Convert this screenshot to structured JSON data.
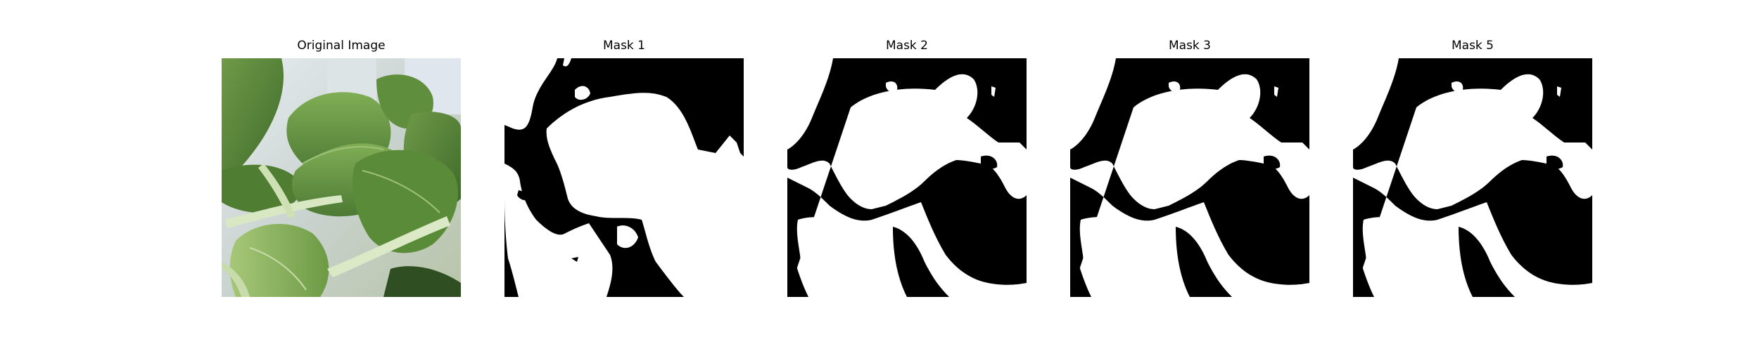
{
  "figure": {
    "panels": [
      {
        "title": "Original Image",
        "kind": "photo",
        "subject": "green bok choy leaves close-up"
      },
      {
        "title": "Mask 1",
        "kind": "mask",
        "colors": {
          "foreground": "#ffffff",
          "background": "#000000"
        }
      },
      {
        "title": "Mask 2",
        "kind": "mask",
        "colors": {
          "foreground": "#ffffff",
          "background": "#000000"
        }
      },
      {
        "title": "Mask 3",
        "kind": "mask",
        "colors": {
          "foreground": "#ffffff",
          "background": "#000000"
        }
      },
      {
        "title": "Mask 5",
        "kind": "mask",
        "colors": {
          "foreground": "#ffffff",
          "background": "#000000"
        }
      }
    ]
  }
}
